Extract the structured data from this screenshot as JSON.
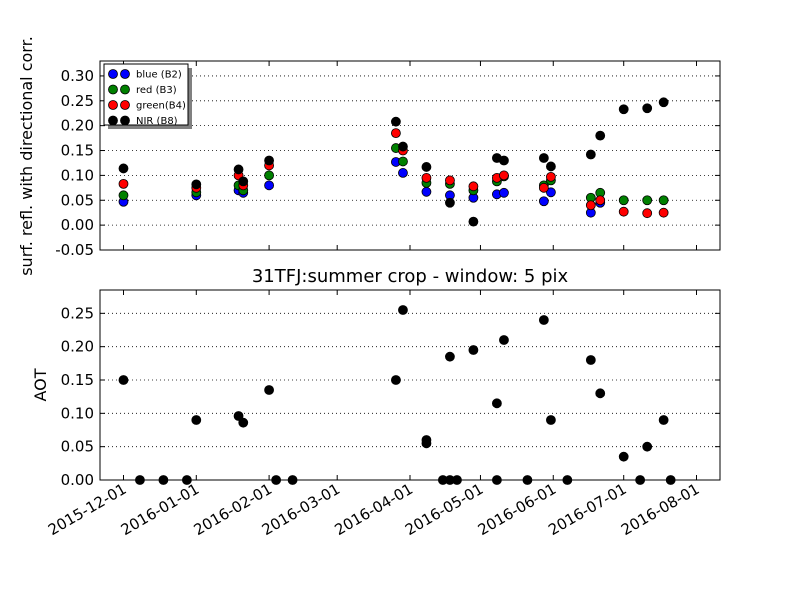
{
  "chart_data": [
    {
      "type": "scatter",
      "ylabel": "surf. refl. with directional corr.",
      "ylim": [
        -0.05,
        0.33
      ],
      "yticks": [
        "-0.05",
        "0.00",
        "0.05",
        "0.10",
        "0.15",
        "0.20",
        "0.25",
        "0.30"
      ],
      "ytick_values": [
        -0.05,
        0.0,
        0.05,
        0.1,
        0.15,
        0.2,
        0.25,
        0.3
      ],
      "grid": true,
      "legend_position": "top-left",
      "x": [
        "2015-12-01",
        "2016-01-01",
        "2016-01-19",
        "2016-01-21",
        "2016-02-01",
        "2016-03-26",
        "2016-03-29",
        "2016-04-08",
        "2016-04-18",
        "2016-04-28",
        "2016-05-08",
        "2016-05-11",
        "2016-05-28",
        "2016-05-31",
        "2016-06-17",
        "2016-06-21",
        "2016-07-01",
        "2016-07-11",
        "2016-07-18"
      ],
      "series": [
        {
          "name": "blue (B2)",
          "color": "#0000ff",
          "values": [
            0.047,
            0.06,
            0.07,
            0.065,
            0.08,
            0.127,
            0.105,
            0.067,
            0.06,
            0.055,
            0.062,
            0.065,
            0.048,
            0.066,
            0.025,
            0.045,
            null,
            null,
            null
          ]
        },
        {
          "name": "red  (B3)",
          "color": "#008000",
          "values": [
            0.06,
            0.066,
            0.08,
            0.07,
            0.1,
            0.155,
            0.128,
            0.085,
            0.083,
            0.07,
            0.088,
            0.098,
            0.08,
            0.09,
            0.055,
            0.065,
            0.05,
            0.05,
            0.05
          ]
        },
        {
          "name": "green(B4)",
          "color": "#ff0000",
          "values": [
            0.083,
            0.075,
            0.1,
            0.08,
            0.12,
            0.185,
            0.15,
            0.095,
            0.09,
            0.078,
            0.095,
            0.1,
            0.075,
            0.097,
            0.04,
            0.05,
            0.027,
            0.024,
            0.025
          ]
        },
        {
          "name": "NIR  (B8)",
          "color": "#000000",
          "values": [
            0.114,
            0.082,
            0.112,
            0.088,
            0.13,
            0.208,
            0.158,
            0.117,
            0.045,
            0.007,
            0.135,
            0.13,
            0.135,
            0.118,
            0.142,
            0.18,
            0.233,
            0.235,
            0.247
          ]
        }
      ]
    },
    {
      "type": "scatter",
      "title": "31TFJ:summer crop - window: 5 pix",
      "ylabel": "AOT",
      "ylim": [
        0.0,
        0.285
      ],
      "yticks": [
        "0.00",
        "0.05",
        "0.10",
        "0.15",
        "0.20",
        "0.25"
      ],
      "ytick_values": [
        0.0,
        0.05,
        0.1,
        0.15,
        0.2,
        0.25
      ],
      "grid": true,
      "xticks": [
        "2015-12-01",
        "2016-01-01",
        "2016-02-01",
        "2016-03-01",
        "2016-04-01",
        "2016-05-01",
        "2016-06-01",
        "2016-07-01",
        "2016-08-01"
      ],
      "xlim": [
        "2015-11-21",
        "2016-08-11"
      ],
      "series": [
        {
          "color": "#000000",
          "x": [
            "2015-12-01",
            "2015-12-08",
            "2015-12-18",
            "2015-12-28",
            "2016-01-01",
            "2016-01-19",
            "2016-01-21",
            "2016-02-01",
            "2016-02-04",
            "2016-02-11",
            "2016-03-26",
            "2016-03-29",
            "2016-04-08",
            "2016-04-08",
            "2016-04-15",
            "2016-04-18",
            "2016-04-18",
            "2016-04-21",
            "2016-04-28",
            "2016-05-08",
            "2016-05-08",
            "2016-05-11",
            "2016-05-21",
            "2016-05-28",
            "2016-05-31",
            "2016-06-07",
            "2016-06-17",
            "2016-06-21",
            "2016-07-01",
            "2016-07-08",
            "2016-07-11",
            "2016-07-18",
            "2016-07-21"
          ],
          "values": [
            0.15,
            0.0,
            0.0,
            0.0,
            0.09,
            0.096,
            0.086,
            0.135,
            0.0,
            0.0,
            0.15,
            0.255,
            0.06,
            0.055,
            0.0,
            0.0,
            0.185,
            0.0,
            0.195,
            0.0,
            0.115,
            0.21,
            0.0,
            0.24,
            0.09,
            0.0,
            0.18,
            0.13,
            0.035,
            0.0,
            0.05,
            0.09,
            0.0
          ]
        }
      ]
    }
  ]
}
